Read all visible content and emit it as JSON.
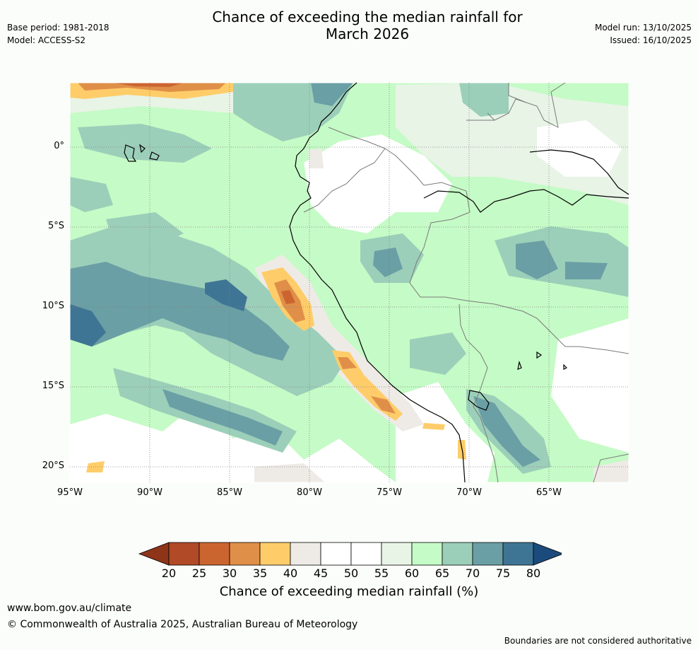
{
  "header": {
    "title_line1": "Chance of exceeding the median rainfall for",
    "title_line2": "March 2026",
    "base_period": "Base period: 1981-2018",
    "model": "Model: ACCESS-S2",
    "model_run": "Model run: 13/10/2025",
    "issued": "Issued: 16/10/2025"
  },
  "map": {
    "lat_labels": [
      "0°",
      "5°S",
      "10°S",
      "15°S",
      "20°S"
    ],
    "lon_labels": [
      "95°W",
      "90°W",
      "85°W",
      "80°W",
      "75°W",
      "70°W",
      "65°W"
    ],
    "region": "Peru and surrounding South America / eastern Pacific",
    "features": {
      "dry_band_coastal_peru": "30-40",
      "wet_band_offshore_pacific": "70-75",
      "northern_equatorial_dry": "30-40"
    }
  },
  "colorbar": {
    "ticks": [
      "20",
      "25",
      "30",
      "35",
      "40",
      "45",
      "50",
      "55",
      "60",
      "65",
      "70",
      "75",
      "80"
    ],
    "colors": [
      "#8e3419",
      "#b14a26",
      "#cb6530",
      "#e08f48",
      "#fecd6a",
      "#eeebe6",
      "#ffffff",
      "#ffffff",
      "#e8f4e6",
      "#c5fbc6",
      "#9ccfb9",
      "#6a9fa5",
      "#3f7594",
      "#1b4b7c"
    ],
    "label": "Chance of exceeding median rainfall (%)"
  },
  "footer": {
    "url": "www.bom.gov.au/climate",
    "copyright": "© Commonwealth of Australia 2025, Australian Bureau of Meteorology",
    "note": "Boundaries are not considered authoritative"
  }
}
